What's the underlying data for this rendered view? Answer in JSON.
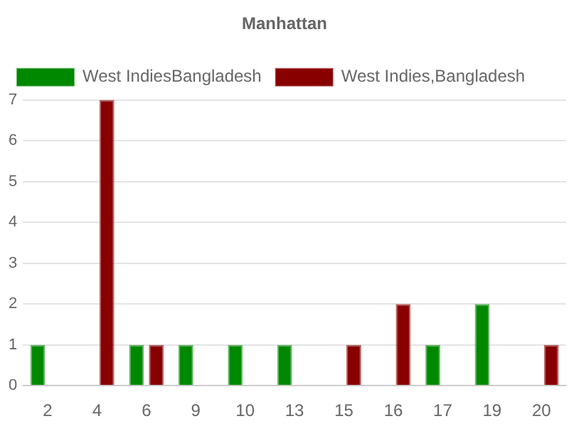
{
  "chart_data": {
    "type": "bar",
    "title": "Manhattan",
    "categories": [
      "2",
      "4",
      "6",
      "9",
      "10",
      "13",
      "15",
      "16",
      "17",
      "19",
      "20"
    ],
    "series": [
      {
        "name": "West IndiesBangladesh",
        "color": "#008800",
        "values": [
          1,
          0,
          1,
          1,
          1,
          1,
          0,
          0,
          1,
          2,
          0
        ]
      },
      {
        "name": "West Indies,Bangladesh",
        "color": "#880000",
        "values": [
          0,
          7,
          1,
          0,
          0,
          0,
          1,
          2,
          0,
          0,
          1
        ]
      }
    ],
    "ylim": [
      0,
      7
    ],
    "yticks": [
      0,
      1,
      2,
      3,
      4,
      5,
      6,
      7
    ],
    "grid": "y",
    "legend": "top left"
  }
}
